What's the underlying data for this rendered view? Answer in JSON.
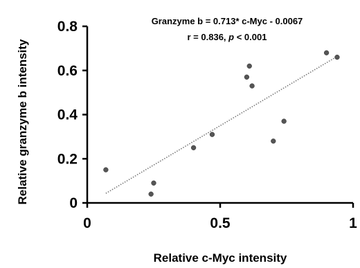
{
  "chart_data": {
    "type": "scatter",
    "xlabel": "Relative c-Myc intensity",
    "ylabel": "Relative granzyme b intensity",
    "xlim": [
      0,
      1
    ],
    "ylim": [
      0,
      0.8
    ],
    "x_ticks": [
      "0",
      "0.5",
      "1"
    ],
    "x_tick_values": [
      0,
      0.5,
      1
    ],
    "y_ticks": [
      "0",
      "0.2",
      "0.4",
      "0.6",
      "0.8"
    ],
    "y_tick_values": [
      0,
      0.2,
      0.4,
      0.6,
      0.8
    ],
    "grid": false,
    "series": [
      {
        "points": [
          {
            "x": 0.07,
            "y": 0.15
          },
          {
            "x": 0.24,
            "y": 0.04
          },
          {
            "x": 0.25,
            "y": 0.09
          },
          {
            "x": 0.4,
            "y": 0.25
          },
          {
            "x": 0.47,
            "y": 0.31
          },
          {
            "x": 0.6,
            "y": 0.57
          },
          {
            "x": 0.61,
            "y": 0.62
          },
          {
            "x": 0.62,
            "y": 0.53
          },
          {
            "x": 0.7,
            "y": 0.28
          },
          {
            "x": 0.74,
            "y": 0.37
          },
          {
            "x": 0.9,
            "y": 0.68
          },
          {
            "x": 0.94,
            "y": 0.66
          }
        ],
        "color": "#555555"
      }
    ],
    "trendline": {
      "slope": 0.713,
      "intercept": -0.0067,
      "x_start": 0.07,
      "x_end": 0.94,
      "style": "dotted",
      "color": "#777777"
    },
    "annotations": {
      "equation": "Granzyme b = 0.713* c-Myc - 0.0067",
      "stats_prefix": "r = 0.836, ",
      "stats_p": "p",
      "stats_suffix": " < 0.001"
    }
  }
}
